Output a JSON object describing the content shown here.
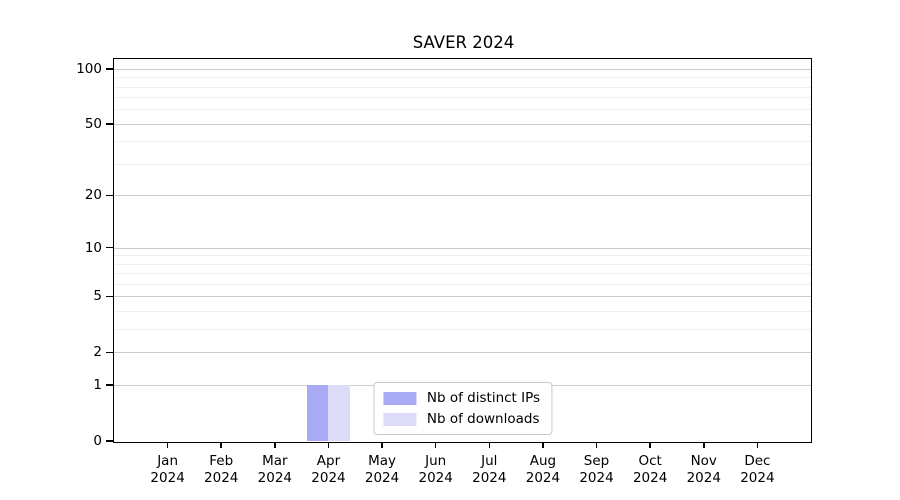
{
  "chart_data": {
    "type": "bar",
    "title": "SAVER 2024",
    "categories": [
      "Jan 2024",
      "Feb 2024",
      "Mar 2024",
      "Apr 2024",
      "May 2024",
      "Jun 2024",
      "Jul 2024",
      "Aug 2024",
      "Sep 2024",
      "Oct 2024",
      "Nov 2024",
      "Dec 2024"
    ],
    "series": [
      {
        "name": "Nb of distinct IPs",
        "color": "#a9aaf6",
        "values": [
          0,
          0,
          0,
          1,
          0,
          0,
          0,
          0,
          0,
          0,
          0,
          0
        ]
      },
      {
        "name": "Nb of downloads",
        "color": "#dcdcf9",
        "values": [
          0,
          0,
          0,
          1,
          0,
          0,
          0,
          0,
          0,
          0,
          0,
          0
        ]
      }
    ],
    "xlabel": "",
    "ylabel": "",
    "y_axis": {
      "scale": "log1p",
      "major_ticks": [
        0,
        1,
        2,
        5,
        10,
        20,
        50,
        100
      ],
      "minor_gridlines": [
        3,
        4,
        6,
        7,
        8,
        9,
        30,
        40,
        60,
        70,
        80,
        90
      ],
      "max": 113
    },
    "grid": "horizontal",
    "legend_position": "inside-bottom-center",
    "colors": {
      "major_grid": "#cccccc",
      "minor_grid": "#f0f0f0",
      "axis": "#000000",
      "background": "#ffffff",
      "text": "#000000"
    }
  }
}
